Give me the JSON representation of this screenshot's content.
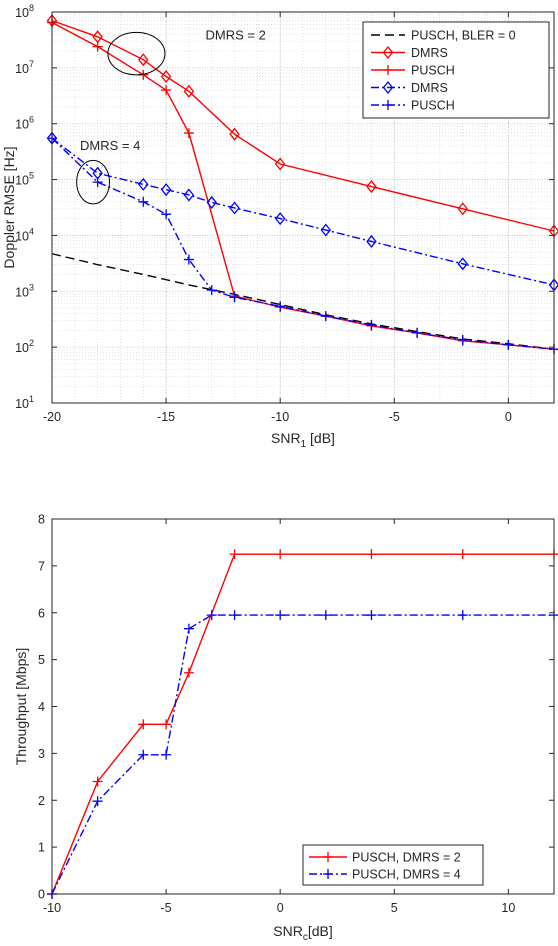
{
  "chart_data": [
    {
      "type": "line",
      "xlabel": "SNR",
      "xlabel_sub": "1",
      "xlabel_unit": " [dB]",
      "ylabel": "Doppler RMSE [Hz]",
      "xlim": [
        -20,
        2
      ],
      "ylim": [
        10,
        100000000
      ],
      "yscale": "log",
      "grid": "major and minor (dotted)",
      "xticks": [
        {
          "value": -20,
          "label": "-20"
        },
        {
          "value": -15,
          "label": "-15"
        },
        {
          "value": -10,
          "label": "-10"
        },
        {
          "value": -5,
          "label": "-5"
        },
        {
          "value": 0,
          "label": "0"
        }
      ],
      "yticks": [
        {
          "value": 10,
          "exp": "1"
        },
        {
          "value": 100,
          "exp": "2"
        },
        {
          "value": 1000,
          "exp": "3"
        },
        {
          "value": 10000,
          "exp": "4"
        },
        {
          "value": 100000,
          "exp": "5"
        },
        {
          "value": 1000000,
          "exp": "6"
        },
        {
          "value": 10000000,
          "exp": "7"
        },
        {
          "value": 100000000,
          "exp": "8"
        }
      ],
      "ytick_base": "10",
      "legend_position": "top-right",
      "series": [
        {
          "name": "PUSCH, BLER = 0",
          "color": "#000000",
          "dash": "dashed",
          "marker": "none",
          "x": [
            -20,
            -18,
            -16,
            -14,
            -12,
            -10,
            -8,
            -6,
            -4,
            -2,
            0,
            2
          ],
          "y": [
            4700,
            3000,
            2000,
            1300,
            880,
            580,
            380,
            260,
            190,
            140,
            115,
            92
          ]
        },
        {
          "name": "DMRS",
          "color": "#ff0000",
          "dash": "solid",
          "marker": "diamond",
          "x": [
            -20,
            -18,
            -16,
            -15,
            -14,
            -12,
            -10,
            -6,
            -2,
            2
          ],
          "y": [
            70000000,
            36000000,
            14000000,
            7000000,
            3800000,
            650000,
            190000,
            75000,
            30000,
            12000
          ]
        },
        {
          "name": "PUSCH",
          "color": "#ff0000",
          "dash": "solid",
          "marker": "plus",
          "x": [
            -20,
            -18,
            -16,
            -15,
            -14,
            -12,
            -10,
            -8,
            -6,
            -4,
            -2,
            0,
            2
          ],
          "y": [
            65000000,
            24000000,
            7500000,
            4000000,
            680000,
            820,
            520,
            360,
            240,
            180,
            130,
            110,
            92
          ]
        },
        {
          "name": "DMRS",
          "color": "#0000ff",
          "dash": "dashdot",
          "marker": "diamond",
          "x": [
            -20,
            -18,
            -16,
            -15,
            -14,
            -13,
            -12,
            -10,
            -8,
            -6,
            -2,
            2
          ],
          "y": [
            550000,
            130000,
            82000,
            66000,
            53000,
            39000,
            31000,
            20000,
            12500,
            7800,
            3100,
            1300
          ]
        },
        {
          "name": "PUSCH",
          "color": "#0000ff",
          "dash": "dashdot",
          "marker": "plus",
          "x": [
            -20,
            -18,
            -16,
            -15,
            -14,
            -13,
            -12,
            -10,
            -8,
            -6,
            -4,
            -2,
            0,
            2
          ],
          "y": [
            550000,
            90000,
            40000,
            24000,
            3700,
            1050,
            780,
            540,
            360,
            250,
            180,
            135,
            110,
            92
          ]
        }
      ],
      "annotations": [
        {
          "text": "DMRS = 2",
          "x": -14.5,
          "y": 38000000
        },
        {
          "text": "DMRS = 4",
          "x": -20,
          "y": 400000
        }
      ],
      "ellipses": [
        {
          "cx": -16.3,
          "cy": 18000000,
          "rx": 1.25,
          "ry_decades": 0.38
        },
        {
          "cx": -18.2,
          "cy": 90000,
          "rx": 0.72,
          "ry_decades": 0.39
        }
      ]
    },
    {
      "type": "line",
      "xlabel": "SNR",
      "xlabel_sub": "c",
      "xlabel_unit": "[dB]",
      "ylabel": "Throughput [Mbps]",
      "xlim": [
        -10,
        12
      ],
      "ylim": [
        0,
        8
      ],
      "grid": "off",
      "xticks": [
        {
          "value": -10,
          "label": "-10"
        },
        {
          "value": -5,
          "label": "-5"
        },
        {
          "value": 0,
          "label": "0"
        },
        {
          "value": 5,
          "label": "5"
        },
        {
          "value": 10,
          "label": "10"
        }
      ],
      "yticks": [
        {
          "value": 0,
          "label": "0"
        },
        {
          "value": 1,
          "label": "1"
        },
        {
          "value": 2,
          "label": "2"
        },
        {
          "value": 3,
          "label": "3"
        },
        {
          "value": 4,
          "label": "4"
        },
        {
          "value": 5,
          "label": "5"
        },
        {
          "value": 6,
          "label": "6"
        },
        {
          "value": 7,
          "label": "7"
        },
        {
          "value": 8,
          "label": "8"
        }
      ],
      "legend_position": "center-right",
      "series": [
        {
          "name": "PUSCH, DMRS = 2",
          "color": "#ff0000",
          "dash": "solid",
          "marker": "plus",
          "x": [
            -10,
            -8,
            -6,
            -5,
            -4,
            -2,
            0,
            4,
            8,
            12
          ],
          "y": [
            0,
            2.4,
            3.62,
            3.62,
            4.72,
            7.25,
            7.25,
            7.25,
            7.25,
            7.25
          ]
        },
        {
          "name": "PUSCH, DMRS = 4",
          "color": "#0000ff",
          "dash": "dashdot",
          "marker": "plus",
          "x": [
            -10,
            -8,
            -6,
            -5,
            -4,
            -3,
            -2,
            0,
            2,
            4,
            8,
            12
          ],
          "y": [
            0,
            1.98,
            2.97,
            2.97,
            5.66,
            5.95,
            5.95,
            5.95,
            5.95,
            5.95,
            5.95,
            5.95
          ]
        }
      ]
    }
  ]
}
